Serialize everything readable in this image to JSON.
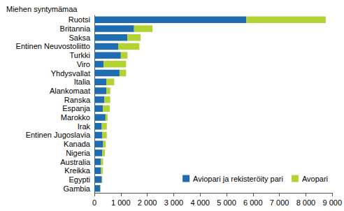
{
  "chart_data": {
    "type": "bar",
    "orientation": "horizontal",
    "stacked": true,
    "title": "Miehen syntymämaa",
    "categories": [
      "Ruotsi",
      "Britannia",
      "Saksa",
      "Entinen Neuvostoliitto",
      "Turkki",
      "Viro",
      "Yhdysvallat",
      "Italia",
      "Alankomaat",
      "Ranska",
      "Espanja",
      "Marokko",
      "Irak",
      "Entinen Jugoslavia",
      "Kanada",
      "Nigeria",
      "Australia",
      "Kreikka",
      "Egypti",
      "Gambia"
    ],
    "series": [
      {
        "name": "Aviopari ja rekisteröity pari",
        "color": "#1f6db0",
        "values": [
          5750,
          1500,
          1250,
          900,
          1000,
          350,
          950,
          450,
          450,
          380,
          320,
          420,
          280,
          300,
          330,
          300,
          250,
          250,
          280,
          220
        ]
      },
      {
        "name": "Avopari",
        "color": "#b3d234",
        "values": [
          3000,
          700,
          500,
          800,
          250,
          850,
          250,
          300,
          150,
          220,
          260,
          80,
          190,
          170,
          100,
          100,
          80,
          70,
          20,
          20
        ]
      }
    ],
    "xlim": [
      0,
      9000
    ],
    "xticks": [
      0,
      {
        "value": 1000,
        "label": "1 000"
      },
      {
        "value": 2000,
        "label": "2 000"
      },
      {
        "value": 3000,
        "label": "3 000"
      },
      {
        "value": 4000,
        "label": "4 000"
      },
      {
        "value": 5000,
        "label": "5 000"
      },
      {
        "value": 6000,
        "label": "6 000"
      },
      {
        "value": 7000,
        "label": "7 000"
      },
      {
        "value": 8000,
        "label": "8 000"
      },
      {
        "value": 9000,
        "label": "9 000"
      }
    ],
    "grid": false,
    "legend": "lower right"
  }
}
